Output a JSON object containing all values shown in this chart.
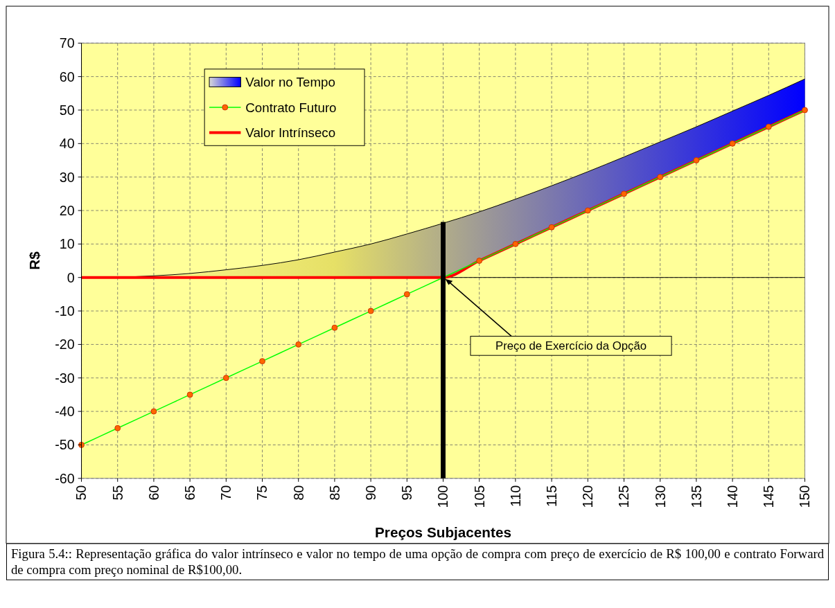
{
  "chart_data": {
    "type": "line",
    "xlabel": "Preços Subjacentes",
    "ylabel": "R$",
    "x": [
      50,
      55,
      60,
      65,
      70,
      75,
      80,
      85,
      90,
      95,
      100,
      105,
      110,
      115,
      120,
      125,
      130,
      135,
      140,
      145,
      150
    ],
    "xlim": [
      50,
      150
    ],
    "xticks": [
      50,
      55,
      60,
      65,
      70,
      75,
      80,
      85,
      90,
      95,
      100,
      105,
      110,
      115,
      120,
      125,
      130,
      135,
      140,
      145,
      150
    ],
    "ylim": [
      -60,
      70
    ],
    "yticks": [
      -60,
      -50,
      -40,
      -30,
      -20,
      -10,
      0,
      10,
      20,
      30,
      40,
      50,
      60,
      70
    ],
    "grid": true,
    "legend": "top left",
    "line_style": "solid",
    "series": [
      {
        "name": "Valor no Tempo",
        "type": "area",
        "color": "#0000ff",
        "values": [
          0,
          0.1,
          0.5,
          1.2,
          2.3,
          3.6,
          5.3,
          7.6,
          10,
          13,
          16.2,
          19.6,
          23.4,
          27.4,
          31.6,
          36,
          40.5,
          45,
          49.7,
          54.4,
          59.3
        ]
      },
      {
        "name": "Contrato Futuro",
        "color": "#00ff00",
        "marker": "circle",
        "values": [
          -50,
          -45,
          -40,
          -35,
          -30,
          -25,
          -20,
          -15,
          -10,
          -5,
          0,
          5,
          10,
          15,
          20,
          25,
          30,
          35,
          40,
          45,
          50
        ]
      },
      {
        "name": "Valor Intrínseco",
        "color": "#ff0000",
        "values": [
          0,
          0,
          0,
          0,
          0,
          0,
          0,
          0,
          0,
          0,
          0,
          5,
          10,
          15,
          20,
          25,
          30,
          35,
          40,
          45,
          50
        ]
      }
    ],
    "ref_lines": [
      {
        "axis": "x",
        "value": 100,
        "label": "Preço de Exercício da Opção",
        "color": "#000000"
      }
    ],
    "annotations": [
      "Figura 5.4:: Representação gráfica do valor intrínseco e valor no tempo de uma opção de compra com preço de exercício de R$ 100,00 e contrato Forward de compra com preço nominal de R$100,00."
    ]
  }
}
